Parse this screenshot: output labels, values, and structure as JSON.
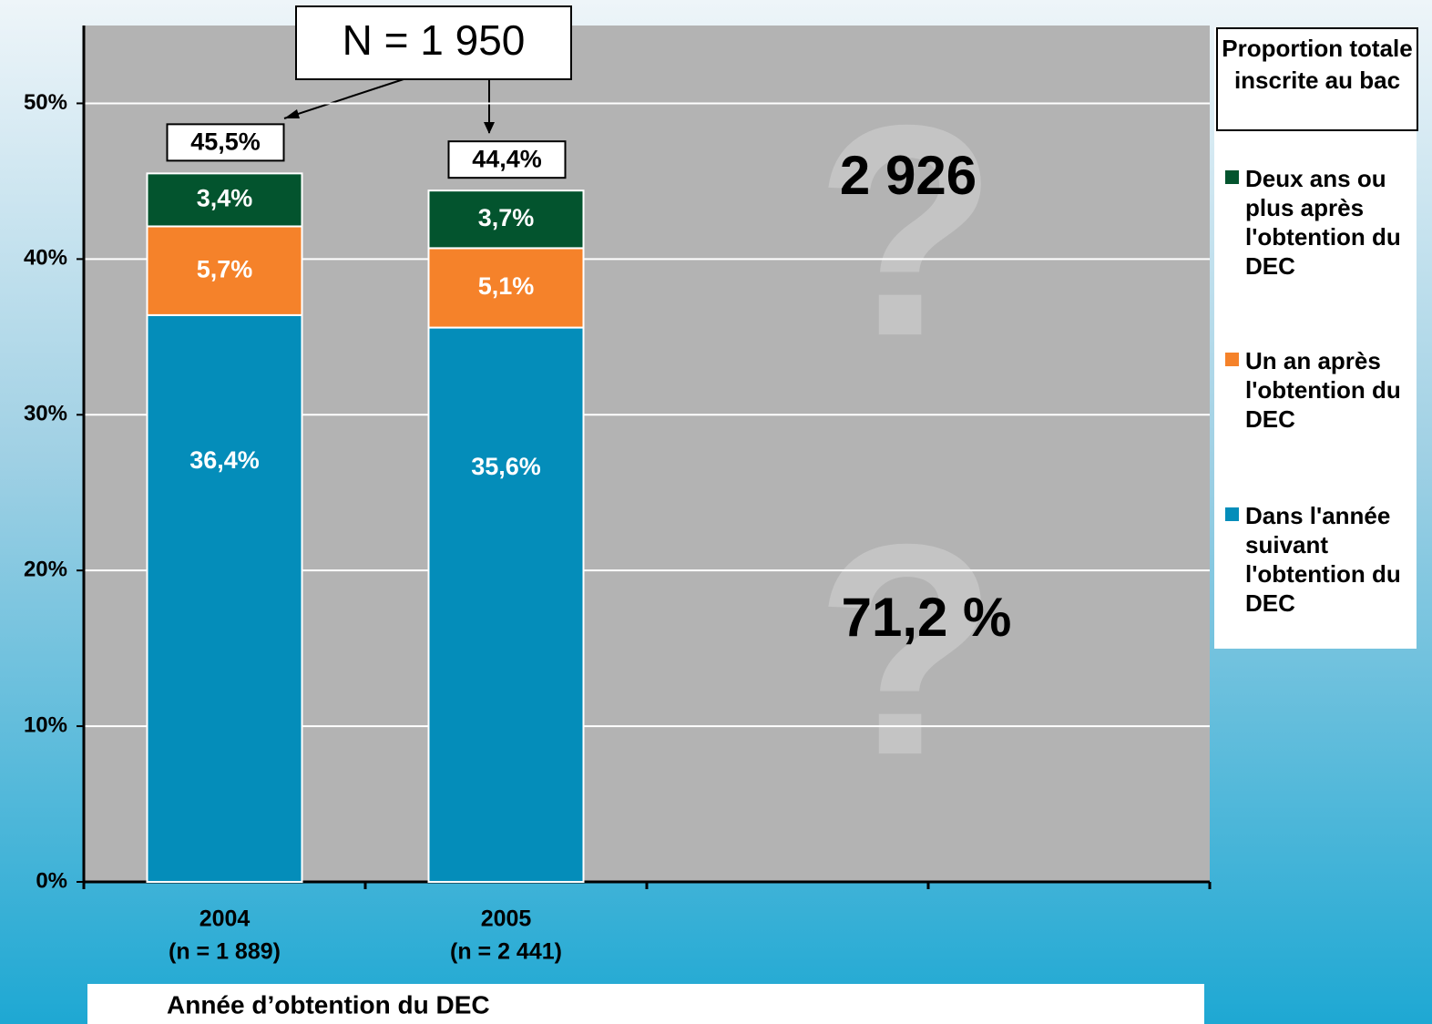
{
  "chart_data": {
    "type": "stacked_bar",
    "categories": [
      "2004",
      "2005",
      null,
      null
    ],
    "category_notes": [
      "(n = 1 889)",
      "(n = 2 441)",
      null,
      null
    ],
    "x_label": "Année d’obtention du DEC",
    "legend_title": "Proportion totale inscrite au bac",
    "series": [
      {
        "name": "Dans l'année suivant l'obtention du DEC",
        "color": "#048dba",
        "values": [
          36.4,
          35.6,
          null,
          null
        ],
        "value_labels": [
          "36,4%",
          "35,6%",
          null,
          null
        ]
      },
      {
        "name": "Un an après l'obtention du DEC",
        "color": "#f5822a",
        "values": [
          5.7,
          5.1,
          null,
          null
        ],
        "value_labels": [
          "5,7%",
          "5,1%",
          null,
          null
        ]
      },
      {
        "name": "Deux ans ou plus après l'obtention du DEC",
        "color": "#03542e",
        "values": [
          3.4,
          3.7,
          null,
          null
        ],
        "value_labels": [
          "3,4%",
          "3,7%",
          null,
          null
        ]
      }
    ],
    "totals": {
      "values": [
        45.5,
        44.4,
        null,
        null
      ],
      "value_labels": [
        "45,5%",
        "44,4%",
        null,
        null
      ]
    },
    "annotations": [
      "N = 1 950",
      "2 926",
      "71,2 %"
    ],
    "ylim": [
      0,
      55
    ],
    "yticks": [
      {
        "value": 0,
        "label": "0%"
      },
      {
        "value": 10,
        "label": "10%"
      },
      {
        "value": 20,
        "label": "20%"
      },
      {
        "value": 30,
        "label": "30%"
      },
      {
        "value": 40,
        "label": "40%"
      },
      {
        "value": 50,
        "label": "50%"
      }
    ],
    "grid": true
  }
}
